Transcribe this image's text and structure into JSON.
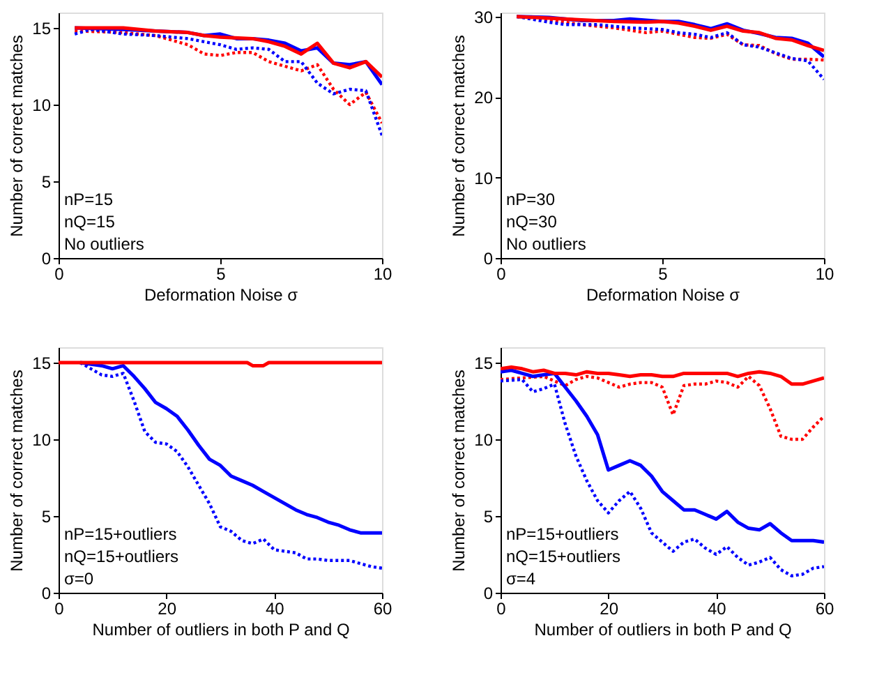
{
  "chart_data": [
    {
      "type": "line",
      "xlabel": "Deformation Noise σ",
      "ylabel": "Number of correct matches",
      "xlim": [
        0,
        10
      ],
      "xticks": [
        0,
        5,
        10
      ],
      "ylim": [
        0,
        16
      ],
      "yticks": [
        0,
        5,
        10,
        15
      ],
      "grid": false,
      "legend": false,
      "annotations": [
        "nP=15",
        "nQ=15",
        "No outliers"
      ],
      "series": [
        {
          "color": "#ff0000",
          "line_style": "dotted",
          "x": [
            0.5,
            2,
            3,
            4,
            4.5,
            5,
            5.5,
            6,
            6.5,
            7,
            7.5,
            8,
            8.5,
            9,
            9.5,
            10
          ],
          "values": [
            14.8,
            14.7,
            14.5,
            13.9,
            13.3,
            13.2,
            13.4,
            13.4,
            12.8,
            12.5,
            12.2,
            12.6,
            11,
            10,
            10.8,
            8.8
          ]
        },
        {
          "color": "#0000ff",
          "line_style": "dotted",
          "x": [
            0.5,
            1,
            2,
            3,
            4,
            4.5,
            5,
            5.5,
            6,
            6.5,
            7,
            7.5,
            8,
            8.5,
            9,
            9.5,
            10
          ],
          "values": [
            14.6,
            14.9,
            14.6,
            14.5,
            14.3,
            14.1,
            13.9,
            13.6,
            13.7,
            13.6,
            12.8,
            12.8,
            11.4,
            10.7,
            11,
            10.9,
            8
          ]
        },
        {
          "color": "#0000ff",
          "line_style": "solid",
          "x": [
            0.5,
            2,
            3,
            4,
            4.5,
            5,
            5.5,
            6,
            6.5,
            7,
            7.5,
            8,
            8.5,
            9,
            9.5,
            10
          ],
          "values": [
            15,
            14.9,
            14.8,
            14.7,
            14.5,
            14.6,
            14.3,
            14.3,
            14.2,
            14,
            13.5,
            13.7,
            12.7,
            12.6,
            12.8,
            11.3
          ]
        },
        {
          "color": "#ff0000",
          "line_style": "solid",
          "x": [
            0.5,
            2,
            3,
            4,
            4.5,
            5,
            6,
            6.5,
            7,
            7.5,
            8,
            8.5,
            9,
            9.5,
            10
          ],
          "values": [
            15,
            15,
            14.8,
            14.7,
            14.5,
            14.4,
            14.3,
            14.1,
            13.8,
            13.3,
            14,
            12.7,
            12.4,
            12.8,
            11.8
          ]
        }
      ]
    },
    {
      "type": "line",
      "xlabel": "Deformation Noise σ",
      "ylabel": "Number of correct matches",
      "xlim": [
        0,
        10
      ],
      "xticks": [
        0,
        5,
        10
      ],
      "ylim": [
        0,
        30.5
      ],
      "yticks": [
        0,
        10,
        20,
        30
      ],
      "grid": false,
      "legend": false,
      "annotations": [
        "nP=30",
        "nQ=30",
        "No outliers"
      ],
      "series": [
        {
          "color": "#ff0000",
          "line_style": "dotted",
          "x": [
            0.5,
            1.5,
            2.5,
            3,
            3.5,
            4,
            4.5,
            5,
            5.5,
            6,
            6.5,
            7,
            7.5,
            8,
            8.5,
            9,
            9.5,
            10
          ],
          "values": [
            30,
            29.6,
            29,
            28.8,
            28.6,
            28.3,
            28,
            28.2,
            27.8,
            27.4,
            27.3,
            27.8,
            26.5,
            26.4,
            25.4,
            24.7,
            24.7,
            24.6
          ]
        },
        {
          "color": "#0000ff",
          "line_style": "dotted",
          "x": [
            0.5,
            1.5,
            2,
            3,
            4,
            5,
            5.5,
            6,
            6.5,
            7,
            7.5,
            8,
            8.5,
            9,
            9.5,
            10
          ],
          "values": [
            30,
            29.3,
            29,
            29,
            28.6,
            28.4,
            28,
            27.8,
            27.4,
            28,
            26.5,
            26.2,
            25.5,
            24.8,
            24.5,
            22.2
          ]
        },
        {
          "color": "#0000ff",
          "line_style": "solid",
          "x": [
            0.5,
            1.5,
            2.5,
            3.5,
            4,
            5,
            5.5,
            6,
            6.5,
            7,
            7.5,
            8,
            8.5,
            9,
            9.5,
            10
          ],
          "values": [
            30,
            29.9,
            29.5,
            29.5,
            29.7,
            29.4,
            29.4,
            29,
            28.5,
            29.1,
            28.3,
            27.9,
            27.4,
            27.3,
            26.7,
            25
          ]
        },
        {
          "color": "#ff0000",
          "line_style": "solid",
          "x": [
            0.5,
            1.5,
            2.5,
            3.5,
            4.5,
            5,
            5.5,
            6,
            6.5,
            7,
            7.5,
            8,
            8.5,
            9,
            9.5,
            10
          ],
          "values": [
            30,
            29.8,
            29.6,
            29.4,
            29.3,
            29.4,
            29.2,
            28.8,
            28.3,
            28.8,
            28.2,
            28,
            27.3,
            27.1,
            26.4,
            25.8
          ]
        }
      ]
    },
    {
      "type": "line",
      "xlabel": "Number of outliers in both P and Q",
      "ylabel": "Number of correct matches",
      "xlim": [
        0,
        60
      ],
      "xticks": [
        0,
        20,
        40,
        60
      ],
      "ylim": [
        0,
        16
      ],
      "yticks": [
        0,
        5,
        10,
        15
      ],
      "grid": false,
      "legend": false,
      "annotations": [
        "nP=15+outliers",
        "nQ=15+outliers",
        "σ=0"
      ],
      "series": [
        {
          "color": "#0000ff",
          "line_style": "dotted",
          "x": [
            4,
            6,
            8,
            10,
            12,
            14,
            16,
            18,
            20,
            22,
            24,
            26,
            28,
            30,
            32,
            34,
            36,
            38,
            40,
            42,
            44,
            46,
            48,
            50,
            52,
            54,
            56,
            58,
            60
          ],
          "values": [
            15,
            14.6,
            14.2,
            14.1,
            14.3,
            12.5,
            10.5,
            9.8,
            9.7,
            9.2,
            8.2,
            7,
            5.8,
            4.3,
            4.0,
            3.4,
            3.2,
            3.5,
            2.8,
            2.7,
            2.6,
            2.2,
            2.2,
            2.1,
            2.1,
            2.1,
            1.9,
            1.7,
            1.6
          ]
        },
        {
          "color": "#0000ff",
          "line_style": "solid",
          "x": [
            4,
            8,
            10,
            12,
            14,
            16,
            18,
            20,
            22,
            24,
            26,
            28,
            30,
            32,
            34,
            36,
            38,
            40,
            42,
            44,
            46,
            48,
            50,
            52,
            54,
            56,
            58,
            60
          ],
          "values": [
            15,
            14.8,
            14.6,
            14.8,
            14.1,
            13.3,
            12.4,
            12.0,
            11.5,
            10.6,
            9.6,
            8.7,
            8.3,
            7.6,
            7.3,
            7.0,
            6.6,
            6.2,
            5.8,
            5.4,
            5.1,
            4.9,
            4.6,
            4.4,
            4.1,
            3.9,
            3.9,
            3.9
          ]
        },
        {
          "color": "#ff0000",
          "line_style": "solid",
          "x": [
            0,
            35,
            36,
            38,
            39,
            60
          ],
          "values": [
            15,
            15,
            14.8,
            14.8,
            15,
            15
          ]
        }
      ]
    },
    {
      "type": "line",
      "xlabel": "Number of outliers in both P and Q",
      "ylabel": "Number of correct matches",
      "xlim": [
        0,
        60
      ],
      "xticks": [
        0,
        20,
        40,
        60
      ],
      "ylim": [
        0,
        16
      ],
      "yticks": [
        0,
        5,
        10,
        15
      ],
      "grid": false,
      "legend": false,
      "annotations": [
        "nP=15+outliers",
        "nQ=15+outliers",
        "σ=4"
      ],
      "series": [
        {
          "color": "#ff0000",
          "line_style": "dotted",
          "x": [
            0,
            4,
            8,
            10,
            12,
            14,
            16,
            18,
            20,
            22,
            24,
            26,
            28,
            30,
            32,
            34,
            36,
            38,
            40,
            42,
            44,
            46,
            48,
            50,
            52,
            54,
            56,
            58,
            60
          ],
          "values": [
            13.9,
            14,
            14.1,
            13.8,
            13.5,
            13.9,
            14.1,
            14.0,
            13.7,
            13.4,
            13.6,
            13.7,
            13.7,
            13.4,
            11.6,
            13.5,
            13.6,
            13.6,
            13.8,
            13.7,
            13.4,
            14.1,
            13.5,
            12.0,
            10.2,
            10.0,
            10.0,
            10.8,
            11.5
          ]
        },
        {
          "color": "#0000ff",
          "line_style": "dotted",
          "x": [
            0,
            4,
            6,
            8,
            10,
            12,
            14,
            16,
            18,
            20,
            22,
            24,
            26,
            28,
            30,
            32,
            34,
            36,
            38,
            40,
            42,
            44,
            46,
            48,
            50,
            52,
            54,
            56,
            58,
            60
          ],
          "values": [
            13.8,
            13.9,
            13.1,
            13.3,
            13.6,
            11.0,
            8.9,
            7.3,
            6.0,
            5.2,
            6.0,
            6.6,
            5.5,
            3.9,
            3.3,
            2.7,
            3.3,
            3.5,
            2.9,
            2.5,
            3.0,
            2.3,
            1.8,
            2.0,
            2.3,
            1.5,
            1.1,
            1.2,
            1.6,
            1.7
          ]
        },
        {
          "color": "#0000ff",
          "line_style": "solid",
          "x": [
            0,
            2,
            4,
            6,
            8,
            10,
            12,
            14,
            16,
            18,
            20,
            22,
            24,
            26,
            28,
            30,
            32,
            34,
            36,
            38,
            40,
            42,
            44,
            46,
            48,
            50,
            52,
            54,
            56,
            58,
            60
          ],
          "values": [
            14.4,
            14.5,
            14.3,
            14.1,
            14.2,
            14.3,
            13.4,
            12.5,
            11.5,
            10.3,
            8.0,
            8.3,
            8.6,
            8.3,
            7.6,
            6.6,
            6.0,
            5.4,
            5.4,
            5.1,
            4.8,
            5.3,
            4.6,
            4.2,
            4.1,
            4.5,
            3.9,
            3.4,
            3.4,
            3.4,
            3.3
          ]
        },
        {
          "color": "#ff0000",
          "line_style": "solid",
          "x": [
            0,
            2,
            4,
            6,
            8,
            10,
            12,
            14,
            16,
            18,
            20,
            22,
            24,
            26,
            28,
            30,
            32,
            34,
            36,
            38,
            40,
            42,
            44,
            46,
            48,
            50,
            52,
            54,
            56,
            58,
            60
          ],
          "values": [
            14.6,
            14.7,
            14.6,
            14.4,
            14.5,
            14.3,
            14.3,
            14.2,
            14.4,
            14.3,
            14.3,
            14.2,
            14.1,
            14.2,
            14.2,
            14.1,
            14.1,
            14.3,
            14.3,
            14.3,
            14.3,
            14.3,
            14.1,
            14.3,
            14.4,
            14.3,
            14.1,
            13.6,
            13.6,
            13.8,
            14
          ]
        }
      ]
    }
  ]
}
